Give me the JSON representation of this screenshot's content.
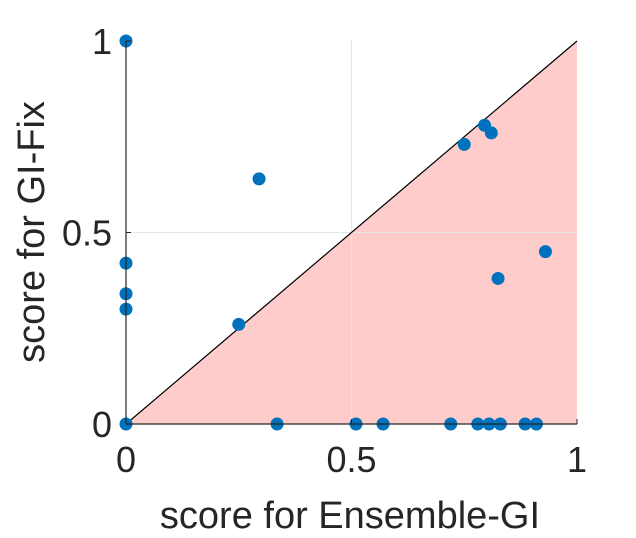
{
  "chart_data": {
    "type": "scatter",
    "xlabel": "score for Ensemble-GI",
    "ylabel": "score for GI-Fix",
    "xlim": [
      0,
      1
    ],
    "ylim": [
      0,
      1
    ],
    "xticks": [
      "0",
      "0.5",
      "1"
    ],
    "yticks": [
      "0",
      "0.5",
      "1"
    ],
    "grid": true,
    "diagonal_line": true,
    "shaded_region": "below-diagonal",
    "colors": {
      "points": "#0072bd",
      "shade": "#ffcccc",
      "diagonal": "#000000",
      "grid": "#e6e6e6",
      "axis": "#262626"
    },
    "series": [
      {
        "points": [
          [
            0.0,
            1.0
          ],
          [
            0.0,
            0.42
          ],
          [
            0.0,
            0.34
          ],
          [
            0.0,
            0.3
          ],
          [
            0.0,
            0.0
          ],
          [
            0.25,
            0.26
          ],
          [
            0.295,
            0.64
          ],
          [
            0.335,
            0.0
          ],
          [
            0.51,
            0.0
          ],
          [
            0.57,
            0.0
          ],
          [
            0.72,
            0.0
          ],
          [
            0.75,
            0.73
          ],
          [
            0.78,
            0.0
          ],
          [
            0.795,
            0.78
          ],
          [
            0.805,
            0.0
          ],
          [
            0.81,
            0.76
          ],
          [
            0.825,
            0.38
          ],
          [
            0.83,
            0.0
          ],
          [
            0.885,
            0.0
          ],
          [
            0.91,
            0.0
          ],
          [
            0.93,
            0.45
          ]
        ]
      }
    ]
  }
}
